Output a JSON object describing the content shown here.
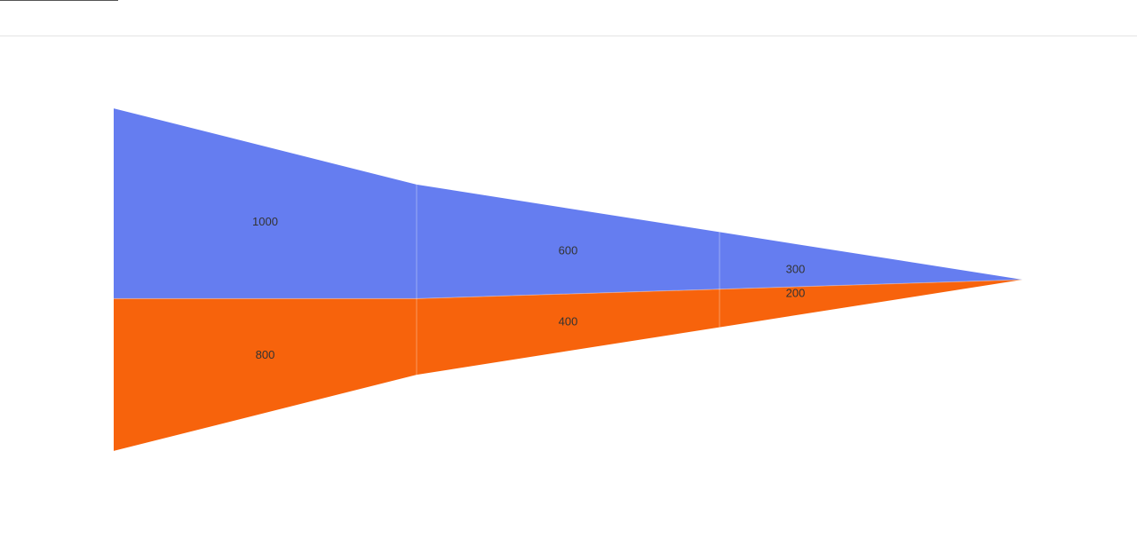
{
  "chart_data": {
    "type": "area",
    "title": "",
    "xlabel": "",
    "ylabel": "",
    "stages": 4,
    "series": [
      {
        "name": "",
        "color": "#657df0",
        "values": [
          1000,
          600,
          300,
          0
        ]
      },
      {
        "name": "",
        "color": "#f7630c",
        "values": [
          800,
          400,
          200,
          0
        ]
      }
    ],
    "data_labels": {
      "series_0": [
        "1000",
        "600",
        "300"
      ],
      "series_1": [
        "800",
        "400",
        "200"
      ]
    }
  }
}
